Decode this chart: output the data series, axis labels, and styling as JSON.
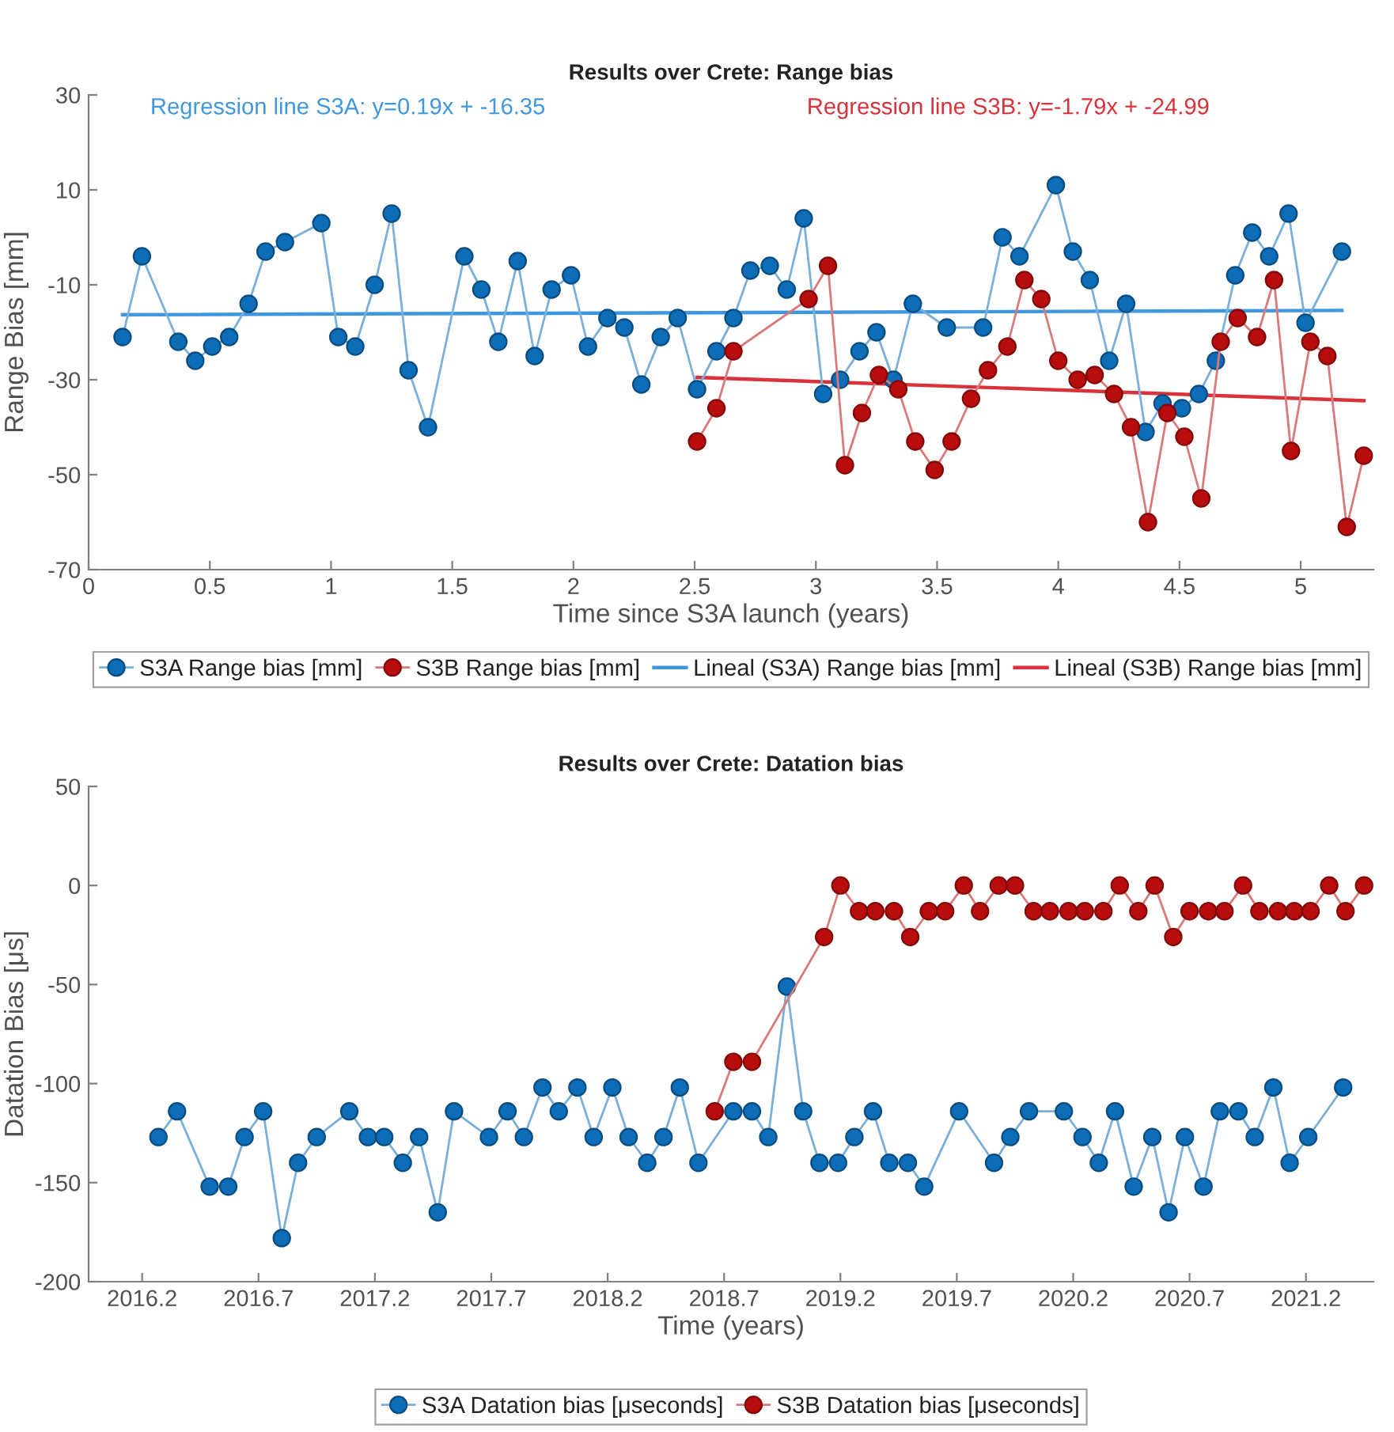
{
  "chart_data": [
    {
      "type": "line",
      "title": "Results over Crete: Range bias",
      "xlabel": "Time since S3A launch (years)",
      "ylabel": "Range Bias [mm]",
      "xlim": [
        0,
        5.3
      ],
      "xticks": [
        0,
        0.5,
        1,
        1.5,
        2,
        2.5,
        3,
        3.5,
        4,
        4.5,
        5
      ],
      "ylim": [
        -70,
        30
      ],
      "yticks": [
        -70,
        -50,
        -30,
        -10,
        10,
        30
      ],
      "grid": false,
      "legend": "bottom",
      "annotations": [
        "Regression line S3A: y=0.19x + -16.35",
        "Regression line S3B: y=-1.79x + -24.99"
      ],
      "series": [
        {
          "name": "S3A Range bias [mm]",
          "marker": "circle",
          "color": "#0d6db7",
          "x": [
            0.14,
            0.22,
            0.37,
            0.44,
            0.51,
            0.58,
            0.66,
            0.73,
            0.81,
            0.96,
            1.03,
            1.1,
            1.18,
            1.25,
            1.32,
            1.4,
            1.55,
            1.62,
            1.69,
            1.77,
            1.84,
            1.91,
            1.99,
            2.06,
            2.14,
            2.21,
            2.28,
            2.36,
            2.43,
            2.51,
            2.59,
            2.66,
            2.73,
            2.81,
            2.88,
            2.95,
            3.03,
            3.1,
            3.18,
            3.25,
            3.32,
            3.4,
            3.54,
            3.69,
            3.77,
            3.84,
            3.99,
            4.06,
            4.13,
            4.21,
            4.28,
            4.36,
            4.43,
            4.51,
            4.58,
            4.65,
            4.73,
            4.8,
            4.87,
            4.95,
            5.02,
            5.17
          ],
          "values": [
            -21,
            -4,
            -22,
            -26,
            -23,
            -21,
            -14,
            -3,
            -1,
            3,
            -21,
            -23,
            -10,
            5,
            -28,
            -40,
            -4,
            -11,
            -22,
            -5,
            -25,
            -11,
            -8,
            -23,
            -17,
            -19,
            -31,
            -21,
            -17,
            -32,
            -24,
            -17,
            -7,
            -6,
            -11,
            4,
            -33,
            -30,
            -24,
            -20,
            -30,
            -14,
            -19,
            -19,
            0,
            -4,
            11,
            -3,
            -9,
            -26,
            -14,
            -41,
            -35,
            -36,
            -33,
            -26,
            -8,
            1,
            -4,
            5,
            -18,
            -3
          ]
        },
        {
          "name": "S3B Range bias [mm]",
          "marker": "circle",
          "color": "#b80d0d",
          "x": [
            2.51,
            2.59,
            2.66,
            2.97,
            3.05,
            3.12,
            3.19,
            3.26,
            3.34,
            3.41,
            3.49,
            3.56,
            3.64,
            3.71,
            3.79,
            3.86,
            3.93,
            4,
            4.08,
            4.15,
            4.23,
            4.3,
            4.37,
            4.45,
            4.52,
            4.59,
            4.67,
            4.74,
            4.82,
            4.89,
            4.96,
            5.04,
            5.11,
            5.19,
            5.26
          ],
          "values": [
            -43,
            -36,
            -24,
            -13,
            -6,
            -48,
            -37,
            -29,
            -32,
            -43,
            -49,
            -43,
            -34,
            -28,
            -23,
            -9,
            -13,
            -26,
            -30,
            -29,
            -33,
            -40,
            -60,
            -37,
            -42,
            -55,
            -22,
            -17,
            -21,
            -9,
            -45,
            -22,
            -25,
            -61,
            -46
          ]
        },
        {
          "name": "Lineal (S3A) Range bias [mm]",
          "marker": "none",
          "color": "#3f97de",
          "x": [
            0.14,
            5.17
          ],
          "values": [
            -16.3,
            -15.4
          ]
        },
        {
          "name": "Lineal (S3B) Range bias [mm]",
          "marker": "none",
          "color": "#d9323a",
          "x": [
            2.51,
            5.26
          ],
          "values": [
            -29.5,
            -34.4
          ]
        }
      ]
    },
    {
      "type": "line",
      "title": "Results over Crete: Datation bias",
      "xlabel": "Time (years)",
      "ylabel": "Datation Bias [μs]",
      "xlim": [
        2015.97,
        2021.49
      ],
      "xticks": [
        2016.2,
        2016.7,
        2017.2,
        2017.7,
        2018.2,
        2018.7,
        2019.2,
        2019.7,
        2020.2,
        2020.7,
        2021.2
      ],
      "ylim": [
        -200,
        50
      ],
      "yticks": [
        -200,
        -150,
        -100,
        -50,
        0,
        50
      ],
      "grid": false,
      "legend": "bottom",
      "series": [
        {
          "name": "S3A Datation bias [μseconds]",
          "marker": "circle",
          "color": "#0d6db7",
          "x": [
            2016.27,
            2016.35,
            2016.49,
            2016.57,
            2016.64,
            2016.72,
            2016.8,
            2016.87,
            2016.95,
            2017.09,
            2017.17,
            2017.24,
            2017.32,
            2017.39,
            2017.47,
            2017.54,
            2017.69,
            2017.77,
            2017.84,
            2017.92,
            2017.99,
            2018.07,
            2018.14,
            2018.22,
            2018.29,
            2018.37,
            2018.44,
            2018.51,
            2018.59,
            2018.74,
            2018.82,
            2018.89,
            2018.97,
            2019.04,
            2019.11,
            2019.19,
            2019.26,
            2019.34,
            2019.41,
            2019.49,
            2019.56,
            2019.71,
            2019.86,
            2019.93,
            2020.01,
            2020.16,
            2020.24,
            2020.31,
            2020.38,
            2020.46,
            2020.54,
            2020.61,
            2020.68,
            2020.76,
            2020.83,
            2020.91,
            2020.98,
            2021.06,
            2021.13,
            2021.21,
            2021.36
          ],
          "values": [
            -127,
            -114,
            -152,
            -152,
            -127,
            -114,
            -178,
            -140,
            -127,
            -114,
            -127,
            -127,
            -140,
            -127,
            -165,
            -114,
            -127,
            -114,
            -127,
            -102,
            -114,
            -102,
            -127,
            -102,
            -127,
            -140,
            -127,
            -102,
            -140,
            -114,
            -114,
            -127,
            -51,
            -114,
            -140,
            -140,
            -127,
            -114,
            -140,
            -140,
            -152,
            -114,
            -140,
            -127,
            -114,
            -114,
            -127,
            -140,
            -114,
            -152,
            -127,
            -165,
            -127,
            -152,
            -114,
            -114,
            -127,
            -102,
            -140,
            -127,
            -102
          ]
        },
        {
          "name": "S3B Datation bias [μseconds]",
          "marker": "circle",
          "color": "#b80d0d",
          "x": [
            2018.66,
            2018.74,
            2018.82,
            2019.13,
            2019.2,
            2019.28,
            2019.35,
            2019.43,
            2019.5,
            2019.58,
            2019.65,
            2019.73,
            2019.8,
            2019.88,
            2019.95,
            2020.03,
            2020.1,
            2020.18,
            2020.25,
            2020.33,
            2020.4,
            2020.48,
            2020.55,
            2020.63,
            2020.7,
            2020.78,
            2020.85,
            2020.93,
            2021,
            2021.08,
            2021.15,
            2021.22,
            2021.3,
            2021.37,
            2021.45
          ],
          "values": [
            -114,
            -89,
            -89,
            -26,
            0,
            -13,
            -13,
            -13,
            -26,
            -13,
            -13,
            0,
            -13,
            0,
            0,
            -13,
            -13,
            -13,
            -13,
            -13,
            0,
            -13,
            0,
            -26,
            -13,
            -13,
            -13,
            0,
            -13,
            -13,
            -13,
            -13,
            0,
            -13,
            0
          ]
        }
      ]
    }
  ]
}
